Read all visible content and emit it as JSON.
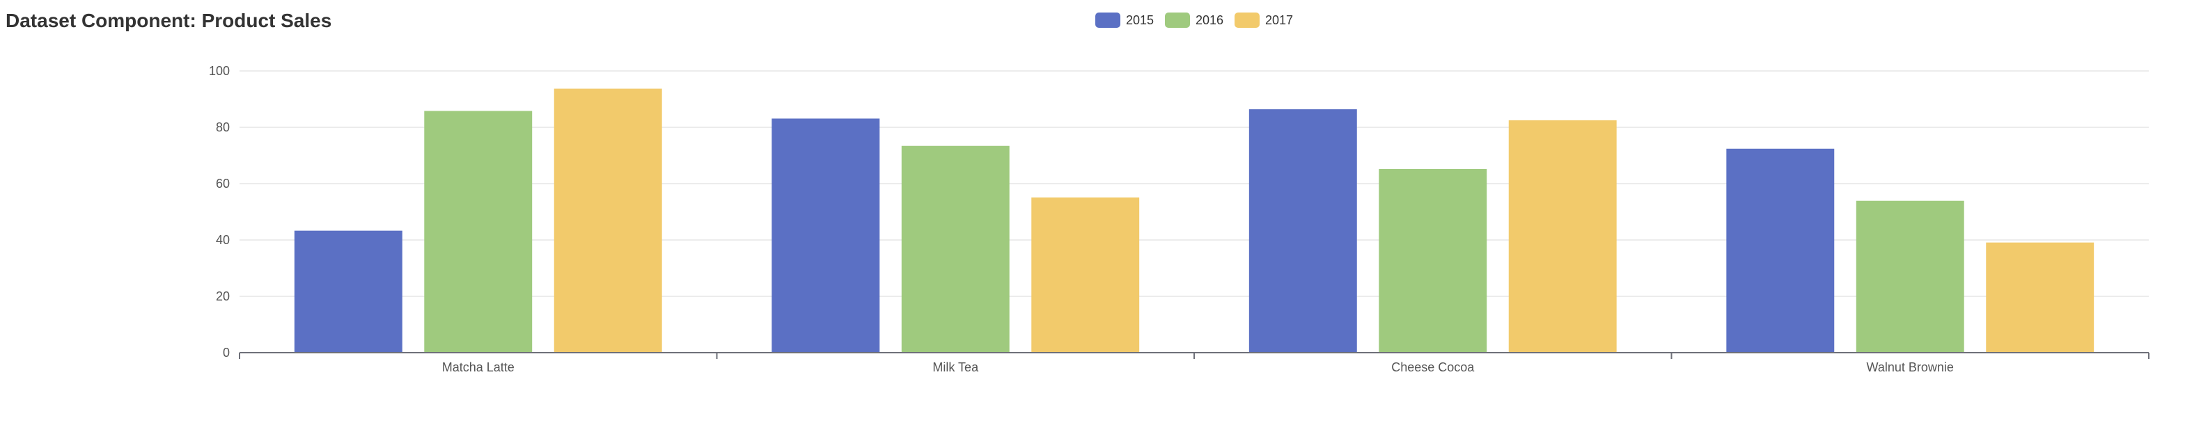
{
  "chart_data": {
    "type": "bar",
    "title": "Dataset Component: Product Sales",
    "categories": [
      "Matcha Latte",
      "Milk Tea",
      "Cheese Cocoa",
      "Walnut Brownie"
    ],
    "series": [
      {
        "name": "2015",
        "values": [
          43.3,
          83.1,
          86.4,
          72.4
        ],
        "color": "#5b70c4"
      },
      {
        "name": "2016",
        "values": [
          85.8,
          73.4,
          65.2,
          53.9
        ],
        "color": "#9fca7e"
      },
      {
        "name": "2017",
        "values": [
          93.7,
          55.1,
          82.5,
          39.1
        ],
        "color": "#f2ca6b"
      }
    ],
    "yticks": [
      "0",
      "20",
      "40",
      "60",
      "80",
      "100"
    ],
    "ylim": [
      0,
      100
    ],
    "grid": true,
    "legend_position": "top-center"
  }
}
